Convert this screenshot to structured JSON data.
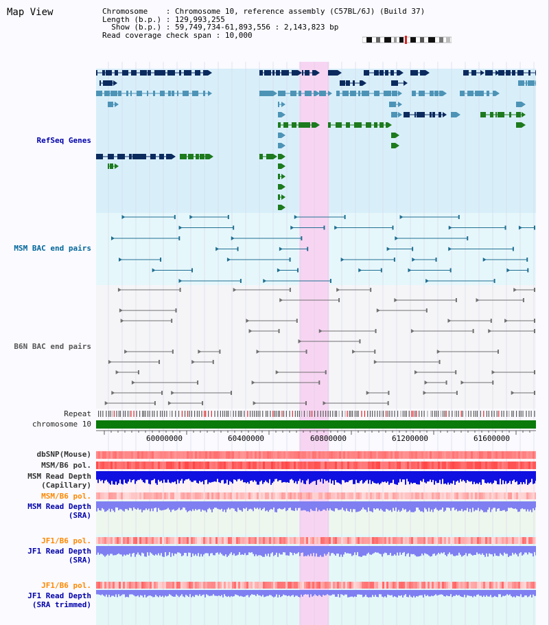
{
  "page": {
    "title": "Map View"
  },
  "info": {
    "chromosome_label": "Chromosome",
    "chromosome_value": "Chromosome 10, reference assembly (C57BL/6J) (Build 37)",
    "length_label": "Length (b.p.)",
    "length_value": "129,993,255",
    "show_label": "Show (b.p.)",
    "show_value": "59,749,734-61,893,556 : 2,143,823 bp",
    "span_label": "Read coverage check span",
    "span_value": "10,000"
  },
  "tracks": {
    "refseq": "RefSeq Genes",
    "msm_bac": "MSM BAC end pairs",
    "b6n_bac": "B6N BAC end pairs",
    "repeat": "Repeat",
    "chromosome": "chromosome 10",
    "dbsnp": "dbSNP(Mouse)",
    "msm_pol1": "MSM/B6 pol.",
    "msm_depth_cap_1": "MSM Read Depth",
    "msm_depth_cap_2": "(Capillary)",
    "msm_pol2": "MSM/B6 pol.",
    "msm_depth_sra_1": "MSM Read Depth",
    "msm_depth_sra_2": "(SRA)",
    "jf1_pol1": "JF1/B6 pol.",
    "jf1_depth_1": "JF1 Read Depth",
    "jf1_depth_2": "(SRA)",
    "jf1_pol2": "JF1/B6 pol.",
    "jf1_depth_trim_1": "JF1 Read Depth",
    "jf1_depth_trim_2": "(SRA trimmed)"
  },
  "axis": {
    "start_bp": 59749734,
    "end_bp": 61893556,
    "ticks": [
      "60000000",
      "60400000",
      "60800000",
      "61200000",
      "61600000"
    ]
  },
  "highlight": {
    "start_bp": 60740000,
    "end_bp": 60885000
  },
  "colors": {
    "refseq_bg": "#d8effa",
    "msm_bg": "#e6f7fb",
    "b6n_bg": "#f5f5f8",
    "highlight": "#f7d5f2",
    "gene_dark": "#0b2a5e",
    "gene_mid": "#4d93b6",
    "gene_green": "#1d7a1d",
    "chromosome_bar": "#0a7a0a",
    "msm_pair": "#1f6e91",
    "b6n_pair": "#707070",
    "depth_cap": "#1010e0",
    "depth_sra": "#7f7ff2",
    "snp_red": "#f08080"
  }
}
